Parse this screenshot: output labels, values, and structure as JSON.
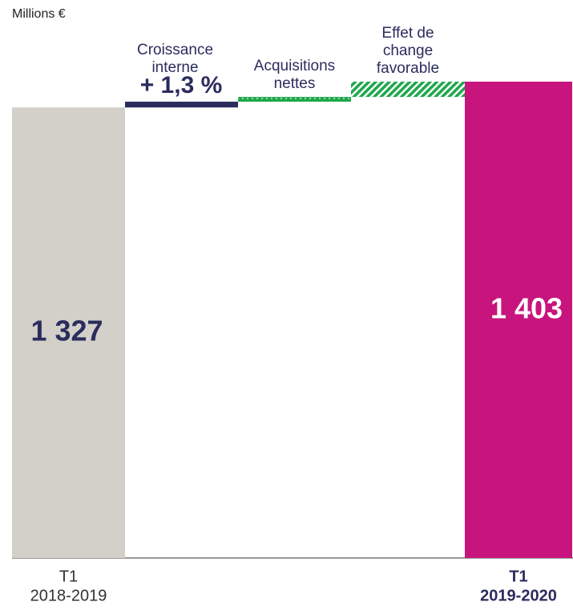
{
  "chart_data": {
    "type": "waterfall",
    "title": "Millions €",
    "categories": [
      [
        "T1",
        "2018-2019"
      ],
      [
        "Croissance",
        "interne"
      ],
      [
        "Acquisitions",
        "nettes"
      ],
      [
        "Effet de",
        "change",
        "favorable"
      ],
      [
        "T1",
        "2019-2020"
      ]
    ],
    "kinds": [
      "total",
      "delta",
      "delta",
      "delta",
      "total"
    ],
    "values": [
      1327,
      17,
      14,
      45,
      1403
    ],
    "value_labels": [
      "1 327",
      null,
      null,
      null,
      "1 403"
    ],
    "colors": [
      "#d3d0c9",
      "#2b2c5e",
      "#1ea84c",
      "#1ea84c",
      "#c8157d"
    ],
    "patterns": [
      "solid",
      "solid",
      "dotted",
      "hatched",
      "solid"
    ],
    "annotation": "+ 1,3 %"
  }
}
